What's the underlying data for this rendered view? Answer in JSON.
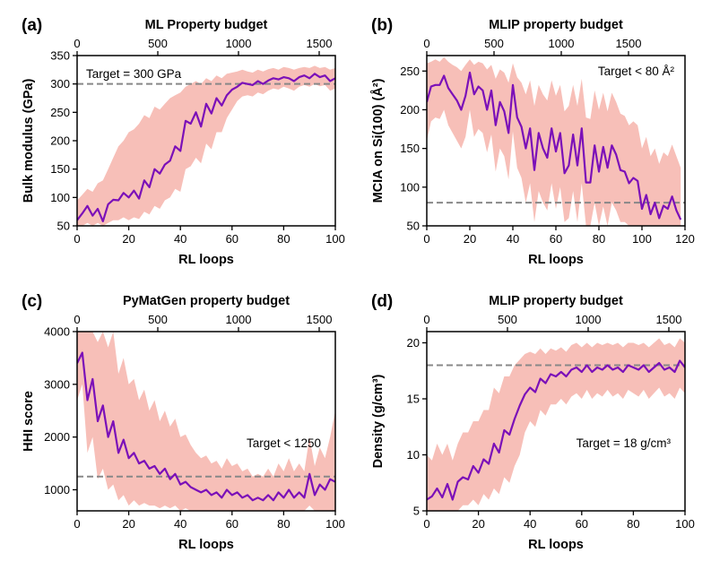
{
  "colors": {
    "line": "#7b10b8",
    "band": "#f4aaa0",
    "target_line": "#888888",
    "axis": "#000000"
  },
  "chart_data": [
    {
      "type": "line",
      "panel_label": "(a)",
      "title": "ML Property budget",
      "xlabel": "RL loops",
      "ylabel": "Bulk modulus (GPa)",
      "xlim": [
        0,
        100
      ],
      "ylim": [
        50,
        350
      ],
      "xticks": [
        0,
        20,
        40,
        60,
        80,
        100
      ],
      "yticks": [
        50,
        100,
        150,
        200,
        250,
        300,
        350
      ],
      "top_axis": {
        "label": "ML Property budget",
        "lim": [
          0,
          1600
        ],
        "ticks": [
          0,
          500,
          1000,
          1500
        ]
      },
      "target": {
        "value": 300,
        "text": "Target = 300 GPa",
        "position": "top-left"
      },
      "series": [
        {
          "name": "mean",
          "x": [
            0,
            2,
            4,
            6,
            8,
            10,
            12,
            14,
            16,
            18,
            20,
            22,
            24,
            26,
            28,
            30,
            32,
            34,
            36,
            38,
            40,
            42,
            44,
            46,
            48,
            50,
            52,
            54,
            56,
            58,
            60,
            62,
            64,
            66,
            68,
            70,
            72,
            74,
            76,
            78,
            80,
            82,
            84,
            86,
            88,
            90,
            92,
            94,
            96,
            98,
            100
          ],
          "values": [
            60,
            72,
            85,
            68,
            80,
            58,
            88,
            96,
            95,
            108,
            100,
            112,
            98,
            130,
            118,
            150,
            142,
            158,
            165,
            190,
            182,
            235,
            230,
            250,
            225,
            265,
            248,
            275,
            262,
            280,
            290,
            295,
            302,
            300,
            298,
            305,
            300,
            306,
            310,
            308,
            312,
            310,
            305,
            312,
            315,
            310,
            318,
            312,
            315,
            305,
            310
          ]
        },
        {
          "name": "upper",
          "values": [
            95,
            105,
            115,
            110,
            125,
            130,
            150,
            170,
            190,
            200,
            215,
            220,
            230,
            245,
            240,
            260,
            255,
            265,
            275,
            280,
            285,
            295,
            300,
            305,
            300,
            310,
            305,
            315,
            310,
            318,
            320,
            322,
            325,
            322,
            320,
            325,
            322,
            326,
            328,
            325,
            330,
            328,
            325,
            328,
            330,
            328,
            332,
            328,
            330,
            325,
            328
          ]
        },
        {
          "name": "lower",
          "values": [
            50,
            50,
            55,
            50,
            55,
            50,
            55,
            60,
            60,
            65,
            60,
            65,
            62,
            75,
            70,
            85,
            80,
            95,
            100,
            115,
            110,
            150,
            155,
            170,
            160,
            195,
            185,
            215,
            215,
            240,
            255,
            270,
            278,
            280,
            278,
            285,
            282,
            288,
            292,
            290,
            295,
            292,
            288,
            295,
            298,
            295,
            300,
            296,
            298,
            288,
            292
          ]
        }
      ]
    },
    {
      "type": "line",
      "panel_label": "(b)",
      "title": "MLIP property budget",
      "xlabel": "RL loops",
      "ylabel": "MCIA on Si(100) (Å²)",
      "xlim": [
        0,
        120
      ],
      "ylim": [
        50,
        270
      ],
      "xticks": [
        0,
        20,
        40,
        60,
        80,
        100,
        120
      ],
      "yticks": [
        50,
        100,
        150,
        200,
        250
      ],
      "top_axis": {
        "label": "MLIP property budget",
        "lim": [
          0,
          1920
        ],
        "ticks": [
          0,
          500,
          1000,
          1500
        ]
      },
      "target": {
        "value": 80,
        "text": "Target < 80 Å²",
        "position": "top-right"
      },
      "series": [
        {
          "name": "mean",
          "x": [
            0,
            2,
            4,
            6,
            8,
            10,
            12,
            14,
            16,
            18,
            20,
            22,
            24,
            26,
            28,
            30,
            32,
            34,
            36,
            38,
            40,
            42,
            44,
            46,
            48,
            50,
            52,
            54,
            56,
            58,
            60,
            62,
            64,
            66,
            68,
            70,
            72,
            74,
            76,
            78,
            80,
            82,
            84,
            86,
            88,
            90,
            92,
            94,
            96,
            98,
            100,
            102,
            104,
            106,
            108,
            110,
            112,
            114,
            116,
            118
          ],
          "values": [
            210,
            230,
            232,
            232,
            244,
            228,
            220,
            212,
            200,
            218,
            248,
            220,
            230,
            225,
            200,
            225,
            180,
            210,
            198,
            170,
            232,
            190,
            178,
            150,
            176,
            122,
            170,
            150,
            138,
            176,
            146,
            170,
            118,
            128,
            168,
            128,
            176,
            106,
            106,
            154,
            120,
            152,
            125,
            154,
            142,
            122,
            120,
            105,
            112,
            108,
            72,
            90,
            65,
            80,
            60,
            76,
            72,
            88,
            70,
            58
          ]
        },
        {
          "name": "upper",
          "values": [
            260,
            262,
            265,
            262,
            268,
            262,
            258,
            255,
            250,
            258,
            265,
            258,
            262,
            260,
            252,
            258,
            240,
            252,
            248,
            235,
            260,
            242,
            235,
            220,
            238,
            205,
            232,
            220,
            212,
            238,
            218,
            232,
            198,
            205,
            232,
            205,
            240,
            190,
            188,
            225,
            200,
            222,
            198,
            222,
            210,
            195,
            192,
            180,
            185,
            180,
            150,
            165,
            140,
            150,
            130,
            145,
            140,
            155,
            140,
            125
          ]
        },
        {
          "name": "lower",
          "values": [
            160,
            185,
            190,
            188,
            200,
            180,
            170,
            160,
            150,
            165,
            200,
            165,
            175,
            170,
            145,
            168,
            120,
            150,
            140,
            110,
            172,
            125,
            112,
            80,
            105,
            55,
            95,
            80,
            70,
            105,
            72,
            100,
            55,
            60,
            95,
            55,
            105,
            50,
            50,
            80,
            50,
            75,
            50,
            80,
            70,
            55,
            55,
            50,
            50,
            50,
            50,
            50,
            50,
            50,
            50,
            50,
            50,
            50,
            50,
            50
          ]
        }
      ]
    },
    {
      "type": "line",
      "panel_label": "(c)",
      "title": "PyMatGen property budget",
      "xlabel": "RL loops",
      "ylabel": "HHI score",
      "xlim": [
        0,
        100
      ],
      "ylim": [
        600,
        4000
      ],
      "xticks": [
        0,
        20,
        40,
        60,
        80,
        100
      ],
      "yticks": [
        1000,
        2000,
        3000,
        4000
      ],
      "top_axis": {
        "label": "PyMatGen property budget",
        "lim": [
          0,
          1600
        ],
        "ticks": [
          0,
          500,
          1000,
          1500
        ]
      },
      "target": {
        "value": 1250,
        "text": "Target < 1250",
        "position": "center-right"
      },
      "series": [
        {
          "name": "mean",
          "x": [
            0,
            2,
            4,
            6,
            8,
            10,
            12,
            14,
            16,
            18,
            20,
            22,
            24,
            26,
            28,
            30,
            32,
            34,
            36,
            38,
            40,
            42,
            44,
            46,
            48,
            50,
            52,
            54,
            56,
            58,
            60,
            62,
            64,
            66,
            68,
            70,
            72,
            74,
            76,
            78,
            80,
            82,
            84,
            86,
            88,
            90,
            92,
            94,
            96,
            98,
            100
          ],
          "values": [
            3400,
            3600,
            2700,
            3100,
            2300,
            2600,
            2000,
            2300,
            1700,
            1950,
            1600,
            1700,
            1500,
            1550,
            1400,
            1450,
            1300,
            1400,
            1200,
            1300,
            1100,
            1150,
            1050,
            1000,
            950,
            1000,
            900,
            950,
            850,
            1000,
            900,
            950,
            850,
            900,
            800,
            850,
            800,
            900,
            800,
            950,
            850,
            1000,
            850,
            950,
            850,
            1300,
            900,
            1100,
            1000,
            1200,
            1150
          ]
        },
        {
          "name": "upper",
          "values": [
            4000,
            4000,
            4000,
            4000,
            3800,
            4000,
            3700,
            4000,
            3200,
            3500,
            3000,
            3100,
            2700,
            2900,
            2500,
            2700,
            2300,
            2500,
            2200,
            2350,
            2000,
            2050,
            1850,
            1700,
            1600,
            1650,
            1500,
            1550,
            1400,
            1600,
            1450,
            1500,
            1350,
            1400,
            1250,
            1300,
            1250,
            1400,
            1250,
            1500,
            1350,
            1600,
            1350,
            1500,
            1350,
            2000,
            1450,
            1800,
            1600,
            2000,
            2500
          ]
        },
        {
          "name": "lower",
          "values": [
            2700,
            3000,
            1700,
            2000,
            1200,
            1400,
            1000,
            1100,
            800,
            900,
            700,
            800,
            700,
            750,
            700,
            700,
            650,
            700,
            650,
            700,
            600,
            650,
            600,
            600,
            600,
            600,
            600,
            600,
            600,
            600,
            600,
            600,
            600,
            600,
            600,
            600,
            600,
            600,
            600,
            600,
            600,
            600,
            600,
            600,
            600,
            700,
            600,
            600,
            600,
            600,
            600
          ]
        }
      ]
    },
    {
      "type": "line",
      "panel_label": "(d)",
      "title": "MLIP property budget",
      "xlabel": "RL loops",
      "ylabel": "Density (g/cm³)",
      "xlim": [
        0,
        100
      ],
      "ylim": [
        5,
        21
      ],
      "xticks": [
        0,
        20,
        40,
        60,
        80,
        100
      ],
      "yticks": [
        5,
        10,
        15,
        20
      ],
      "top_axis": {
        "label": "MLIP property budget",
        "lim": [
          0,
          1600
        ],
        "ticks": [
          0,
          500,
          1000,
          1500
        ]
      },
      "target": {
        "value": 18,
        "text": "Target = 18 g/cm³",
        "position": "center-right"
      },
      "series": [
        {
          "name": "mean",
          "x": [
            0,
            2,
            4,
            6,
            8,
            10,
            12,
            14,
            16,
            18,
            20,
            22,
            24,
            26,
            28,
            30,
            32,
            34,
            36,
            38,
            40,
            42,
            44,
            46,
            48,
            50,
            52,
            54,
            56,
            58,
            60,
            62,
            64,
            66,
            68,
            70,
            72,
            74,
            76,
            78,
            80,
            82,
            84,
            86,
            88,
            90,
            92,
            94,
            96,
            98,
            100
          ],
          "values": [
            6.0,
            6.3,
            7.0,
            6.2,
            7.4,
            6.0,
            7.6,
            8.0,
            7.8,
            9.0,
            8.4,
            9.6,
            9.2,
            11.0,
            10.2,
            12.2,
            11.8,
            13.2,
            14.4,
            15.4,
            16.0,
            15.6,
            16.8,
            16.4,
            17.2,
            17.0,
            17.4,
            17.0,
            17.6,
            17.8,
            17.4,
            18.0,
            17.4,
            17.8,
            17.6,
            18.0,
            17.6,
            17.8,
            17.4,
            18.0,
            17.8,
            17.6,
            18.0,
            17.4,
            17.8,
            18.2,
            17.6,
            17.8,
            17.4,
            18.4,
            17.8
          ]
        },
        {
          "name": "upper",
          "values": [
            10,
            9.5,
            11,
            10,
            11,
            9.5,
            11,
            12,
            12,
            13,
            13,
            14,
            14,
            16,
            15.5,
            17,
            17,
            18,
            18.5,
            19,
            19.2,
            19,
            19.5,
            19,
            19.5,
            19.3,
            19.6,
            19.2,
            19.8,
            20,
            19.6,
            20,
            19.6,
            20,
            19.8,
            20,
            19.8,
            20,
            19.6,
            20,
            20,
            19.8,
            20,
            19.6,
            20,
            20.4,
            19.8,
            20,
            19.6,
            20.4,
            20
          ]
        },
        {
          "name": "lower",
          "values": [
            5,
            5,
            5,
            5,
            5,
            5,
            5,
            5.5,
            5.5,
            6,
            5.5,
            6.5,
            6,
            7,
            6.5,
            8,
            7.5,
            9,
            10,
            12,
            13,
            12.5,
            14,
            13.5,
            14.5,
            14.5,
            15,
            14.5,
            15.2,
            15.5,
            15,
            15.8,
            15,
            15.5,
            15.2,
            15.8,
            15.2,
            15.5,
            15,
            15.8,
            15.5,
            15.2,
            15.8,
            15,
            15.5,
            16,
            15.2,
            15.5,
            15,
            16,
            15.5
          ]
        }
      ]
    }
  ]
}
